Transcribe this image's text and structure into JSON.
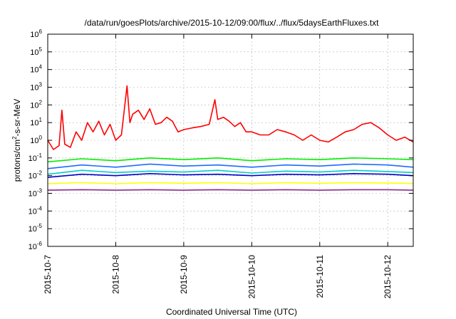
{
  "chart_data": {
    "type": "line",
    "title": "/data/run/goesPlots/archive/2015-10-12/09:00/flux/../flux/5daysEarthFluxes.txt",
    "xlabel": "Coordinated Universal Time (UTC)",
    "ylabel": {
      "prefix": "protons/cm",
      "sup": "2",
      "suffix": "-s-sr-MeV"
    },
    "yscale": "log",
    "xlim": [
      "2015-10-07",
      "2015-10-12 09:00"
    ],
    "ylim": [
      1e-06,
      1000000.0
    ],
    "grid": true,
    "x_ticks": [
      {
        "date": "2015-10-07",
        "label": "2015-10-7"
      },
      {
        "date": "2015-10-08",
        "label": "2015-10-8"
      },
      {
        "date": "2015-10-09",
        "label": "2015-10-9"
      },
      {
        "date": "2015-10-10",
        "label": "2015-10-10"
      },
      {
        "date": "2015-10-11",
        "label": "2015-10-11"
      },
      {
        "date": "2015-10-12",
        "label": "2015-10-12"
      }
    ],
    "y_ticks": [
      {
        "exp": -6,
        "base": "10",
        "sup": "-6"
      },
      {
        "exp": -5,
        "base": "10",
        "sup": "-5"
      },
      {
        "exp": -4,
        "base": "10",
        "sup": "-4"
      },
      {
        "exp": -3,
        "base": "10",
        "sup": "-3"
      },
      {
        "exp": -2,
        "base": "10",
        "sup": "-2"
      },
      {
        "exp": -1,
        "base": "10",
        "sup": "-1"
      },
      {
        "exp": 0,
        "base": "10",
        "sup": "0"
      },
      {
        "exp": 1,
        "base": "10",
        "sup": "1"
      },
      {
        "exp": 2,
        "base": "10",
        "sup": "2"
      },
      {
        "exp": 3,
        "base": "10",
        "sup": "3"
      },
      {
        "exp": 4,
        "base": "10",
        "sup": "4"
      },
      {
        "exp": 5,
        "base": "10",
        "sup": "5"
      },
      {
        "exp": 6,
        "base": "10",
        "sup": "6"
      }
    ],
    "series": [
      {
        "color": "#ff0000",
        "x": [
          "2015-10-07 00:00",
          "2015-10-07 02:00",
          "2015-10-07 04:00",
          "2015-10-07 05:00",
          "2015-10-07 06:00",
          "2015-10-07 08:00",
          "2015-10-07 10:00",
          "2015-10-07 12:00",
          "2015-10-07 14:00",
          "2015-10-07 16:00",
          "2015-10-07 18:00",
          "2015-10-07 20:00",
          "2015-10-07 22:00",
          "2015-10-08 00:00",
          "2015-10-08 02:00",
          "2015-10-08 04:00",
          "2015-10-08 05:00",
          "2015-10-08 06:00",
          "2015-10-08 08:00",
          "2015-10-08 10:00",
          "2015-10-08 12:00",
          "2015-10-08 14:00",
          "2015-10-08 16:00",
          "2015-10-08 18:00",
          "2015-10-08 20:00",
          "2015-10-08 22:00",
          "2015-10-09 00:00",
          "2015-10-09 03:00",
          "2015-10-09 06:00",
          "2015-10-09 09:00",
          "2015-10-09 11:00",
          "2015-10-09 12:00",
          "2015-10-09 14:00",
          "2015-10-09 16:00",
          "2015-10-09 18:00",
          "2015-10-09 20:00",
          "2015-10-09 22:00",
          "2015-10-10 00:00",
          "2015-10-10 03:00",
          "2015-10-10 06:00",
          "2015-10-10 09:00",
          "2015-10-10 12:00",
          "2015-10-10 15:00",
          "2015-10-10 18:00",
          "2015-10-10 21:00",
          "2015-10-11 00:00",
          "2015-10-11 03:00",
          "2015-10-11 06:00",
          "2015-10-11 09:00",
          "2015-10-11 12:00",
          "2015-10-11 15:00",
          "2015-10-11 18:00",
          "2015-10-11 21:00",
          "2015-10-12 00:00",
          "2015-10-12 03:00",
          "2015-10-12 06:00",
          "2015-10-12 09:00"
        ],
        "values": [
          1.0,
          0.3,
          0.5,
          50,
          0.6,
          0.4,
          3,
          1,
          10,
          3,
          12,
          2,
          8,
          1,
          2,
          1200,
          10,
          30,
          50,
          15,
          60,
          8,
          10,
          20,
          12,
          3,
          4,
          5,
          6,
          8,
          200,
          15,
          20,
          12,
          6,
          10,
          3,
          3,
          2,
          2,
          4,
          3,
          2,
          1,
          2,
          1,
          0.8,
          1.5,
          3,
          4,
          8,
          10,
          5,
          2,
          1,
          1.5,
          0.8
        ]
      },
      {
        "color": "#00ee00",
        "x": [
          "2015-10-07 00:00",
          "2015-10-07 12:00",
          "2015-10-08 00:00",
          "2015-10-08 12:00",
          "2015-10-09 00:00",
          "2015-10-09 12:00",
          "2015-10-10 00:00",
          "2015-10-10 12:00",
          "2015-10-11 00:00",
          "2015-10-11 12:00",
          "2015-10-12 00:00",
          "2015-10-12 09:00"
        ],
        "values": [
          0.06,
          0.09,
          0.07,
          0.1,
          0.08,
          0.1,
          0.07,
          0.09,
          0.08,
          0.1,
          0.09,
          0.08
        ]
      },
      {
        "color": "#1e6bff",
        "x": [
          "2015-10-07 00:00",
          "2015-10-07 12:00",
          "2015-10-08 00:00",
          "2015-10-08 12:00",
          "2015-10-09 00:00",
          "2015-10-09 12:00",
          "2015-10-10 00:00",
          "2015-10-10 12:00",
          "2015-10-11 00:00",
          "2015-10-11 12:00",
          "2015-10-12 00:00",
          "2015-10-12 09:00"
        ],
        "values": [
          0.025,
          0.04,
          0.03,
          0.045,
          0.035,
          0.04,
          0.03,
          0.04,
          0.035,
          0.045,
          0.04,
          0.03
        ]
      },
      {
        "color": "#00cccc",
        "x": [
          "2015-10-07 00:00",
          "2015-10-07 12:00",
          "2015-10-08 00:00",
          "2015-10-08 12:00",
          "2015-10-09 00:00",
          "2015-10-09 12:00",
          "2015-10-10 00:00",
          "2015-10-10 12:00",
          "2015-10-11 00:00",
          "2015-10-11 12:00",
          "2015-10-12 00:00",
          "2015-10-12 09:00"
        ],
        "values": [
          0.012,
          0.02,
          0.015,
          0.018,
          0.016,
          0.02,
          0.014,
          0.018,
          0.016,
          0.02,
          0.017,
          0.015
        ]
      },
      {
        "color": "#0000cc",
        "x": [
          "2015-10-07 00:00",
          "2015-10-07 12:00",
          "2015-10-08 00:00",
          "2015-10-08 12:00",
          "2015-10-09 00:00",
          "2015-10-09 12:00",
          "2015-10-10 00:00",
          "2015-10-10 12:00",
          "2015-10-11 00:00",
          "2015-10-11 12:00",
          "2015-10-12 00:00",
          "2015-10-12 09:00"
        ],
        "values": [
          0.008,
          0.012,
          0.01,
          0.013,
          0.011,
          0.012,
          0.01,
          0.012,
          0.011,
          0.013,
          0.012,
          0.01
        ]
      },
      {
        "color": "#ffff00",
        "x": [
          "2015-10-07 00:00",
          "2015-10-07 12:00",
          "2015-10-08 00:00",
          "2015-10-08 12:00",
          "2015-10-09 00:00",
          "2015-10-09 12:00",
          "2015-10-10 00:00",
          "2015-10-10 12:00",
          "2015-10-11 00:00",
          "2015-10-11 12:00",
          "2015-10-12 00:00",
          "2015-10-12 09:00"
        ],
        "values": [
          0.0035,
          0.004,
          0.0035,
          0.004,
          0.0037,
          0.004,
          0.0035,
          0.004,
          0.0037,
          0.004,
          0.0038,
          0.0036
        ]
      },
      {
        "color": "#8b2a8b",
        "x": [
          "2015-10-07 00:00",
          "2015-10-07 12:00",
          "2015-10-08 00:00",
          "2015-10-08 12:00",
          "2015-10-09 00:00",
          "2015-10-09 12:00",
          "2015-10-10 00:00",
          "2015-10-10 12:00",
          "2015-10-11 00:00",
          "2015-10-11 12:00",
          "2015-10-12 00:00",
          "2015-10-12 09:00"
        ],
        "values": [
          0.0015,
          0.0016,
          0.0015,
          0.0016,
          0.0015,
          0.0016,
          0.0015,
          0.0016,
          0.0015,
          0.0016,
          0.0016,
          0.0015
        ]
      }
    ]
  }
}
